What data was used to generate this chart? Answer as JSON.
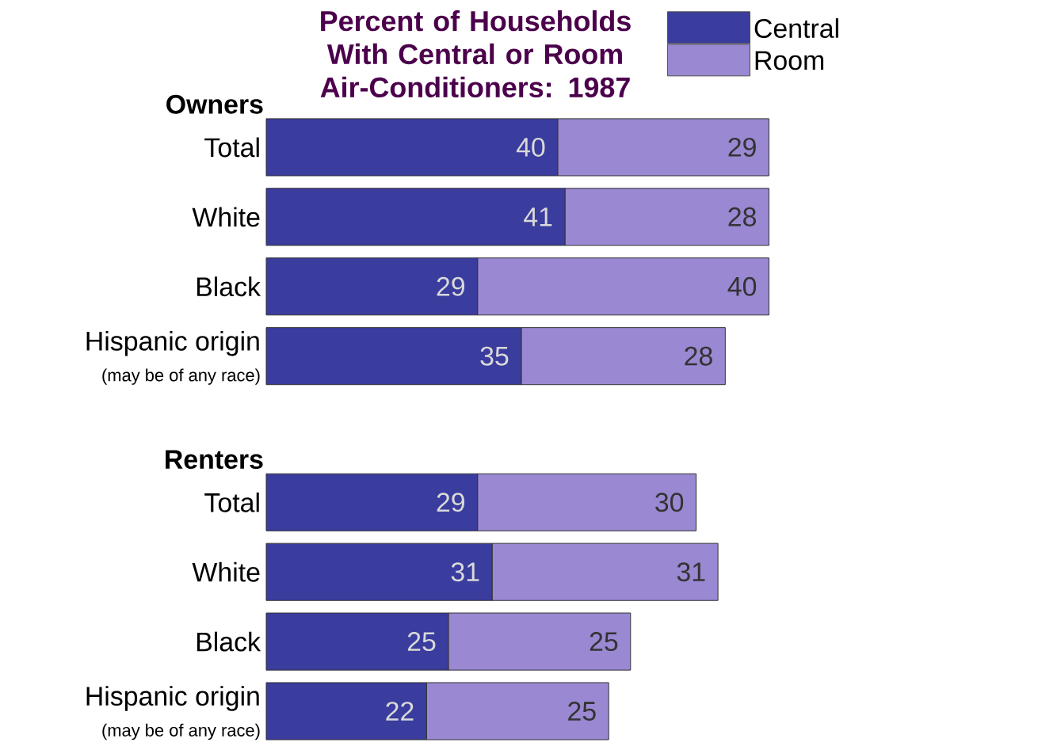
{
  "chart_data": {
    "type": "bar",
    "orientation": "horizontal",
    "stacked": true,
    "data_labels": true,
    "tick_labels": "y",
    "legend": "top right",
    "title": "Percent of Households With Central or Room Air-Conditioners: 1987",
    "categories": [
      "Total",
      "White",
      "Black",
      "Hispanic origin",
      "Total",
      "White",
      "Black",
      "Hispanic origin"
    ],
    "series": [
      {
        "name": "Central",
        "color": "#3a3c9e",
        "values": [
          40,
          41,
          29,
          35,
          29,
          31,
          25,
          22
        ]
      },
      {
        "name": "Room",
        "color": "#9a88d2",
        "values": [
          29,
          28,
          40,
          28,
          30,
          31,
          25,
          25
        ]
      }
    ],
    "annotations": [
      "Owners",
      "Renters",
      "(may be of any race)",
      "(may be of any race)"
    ]
  }
}
